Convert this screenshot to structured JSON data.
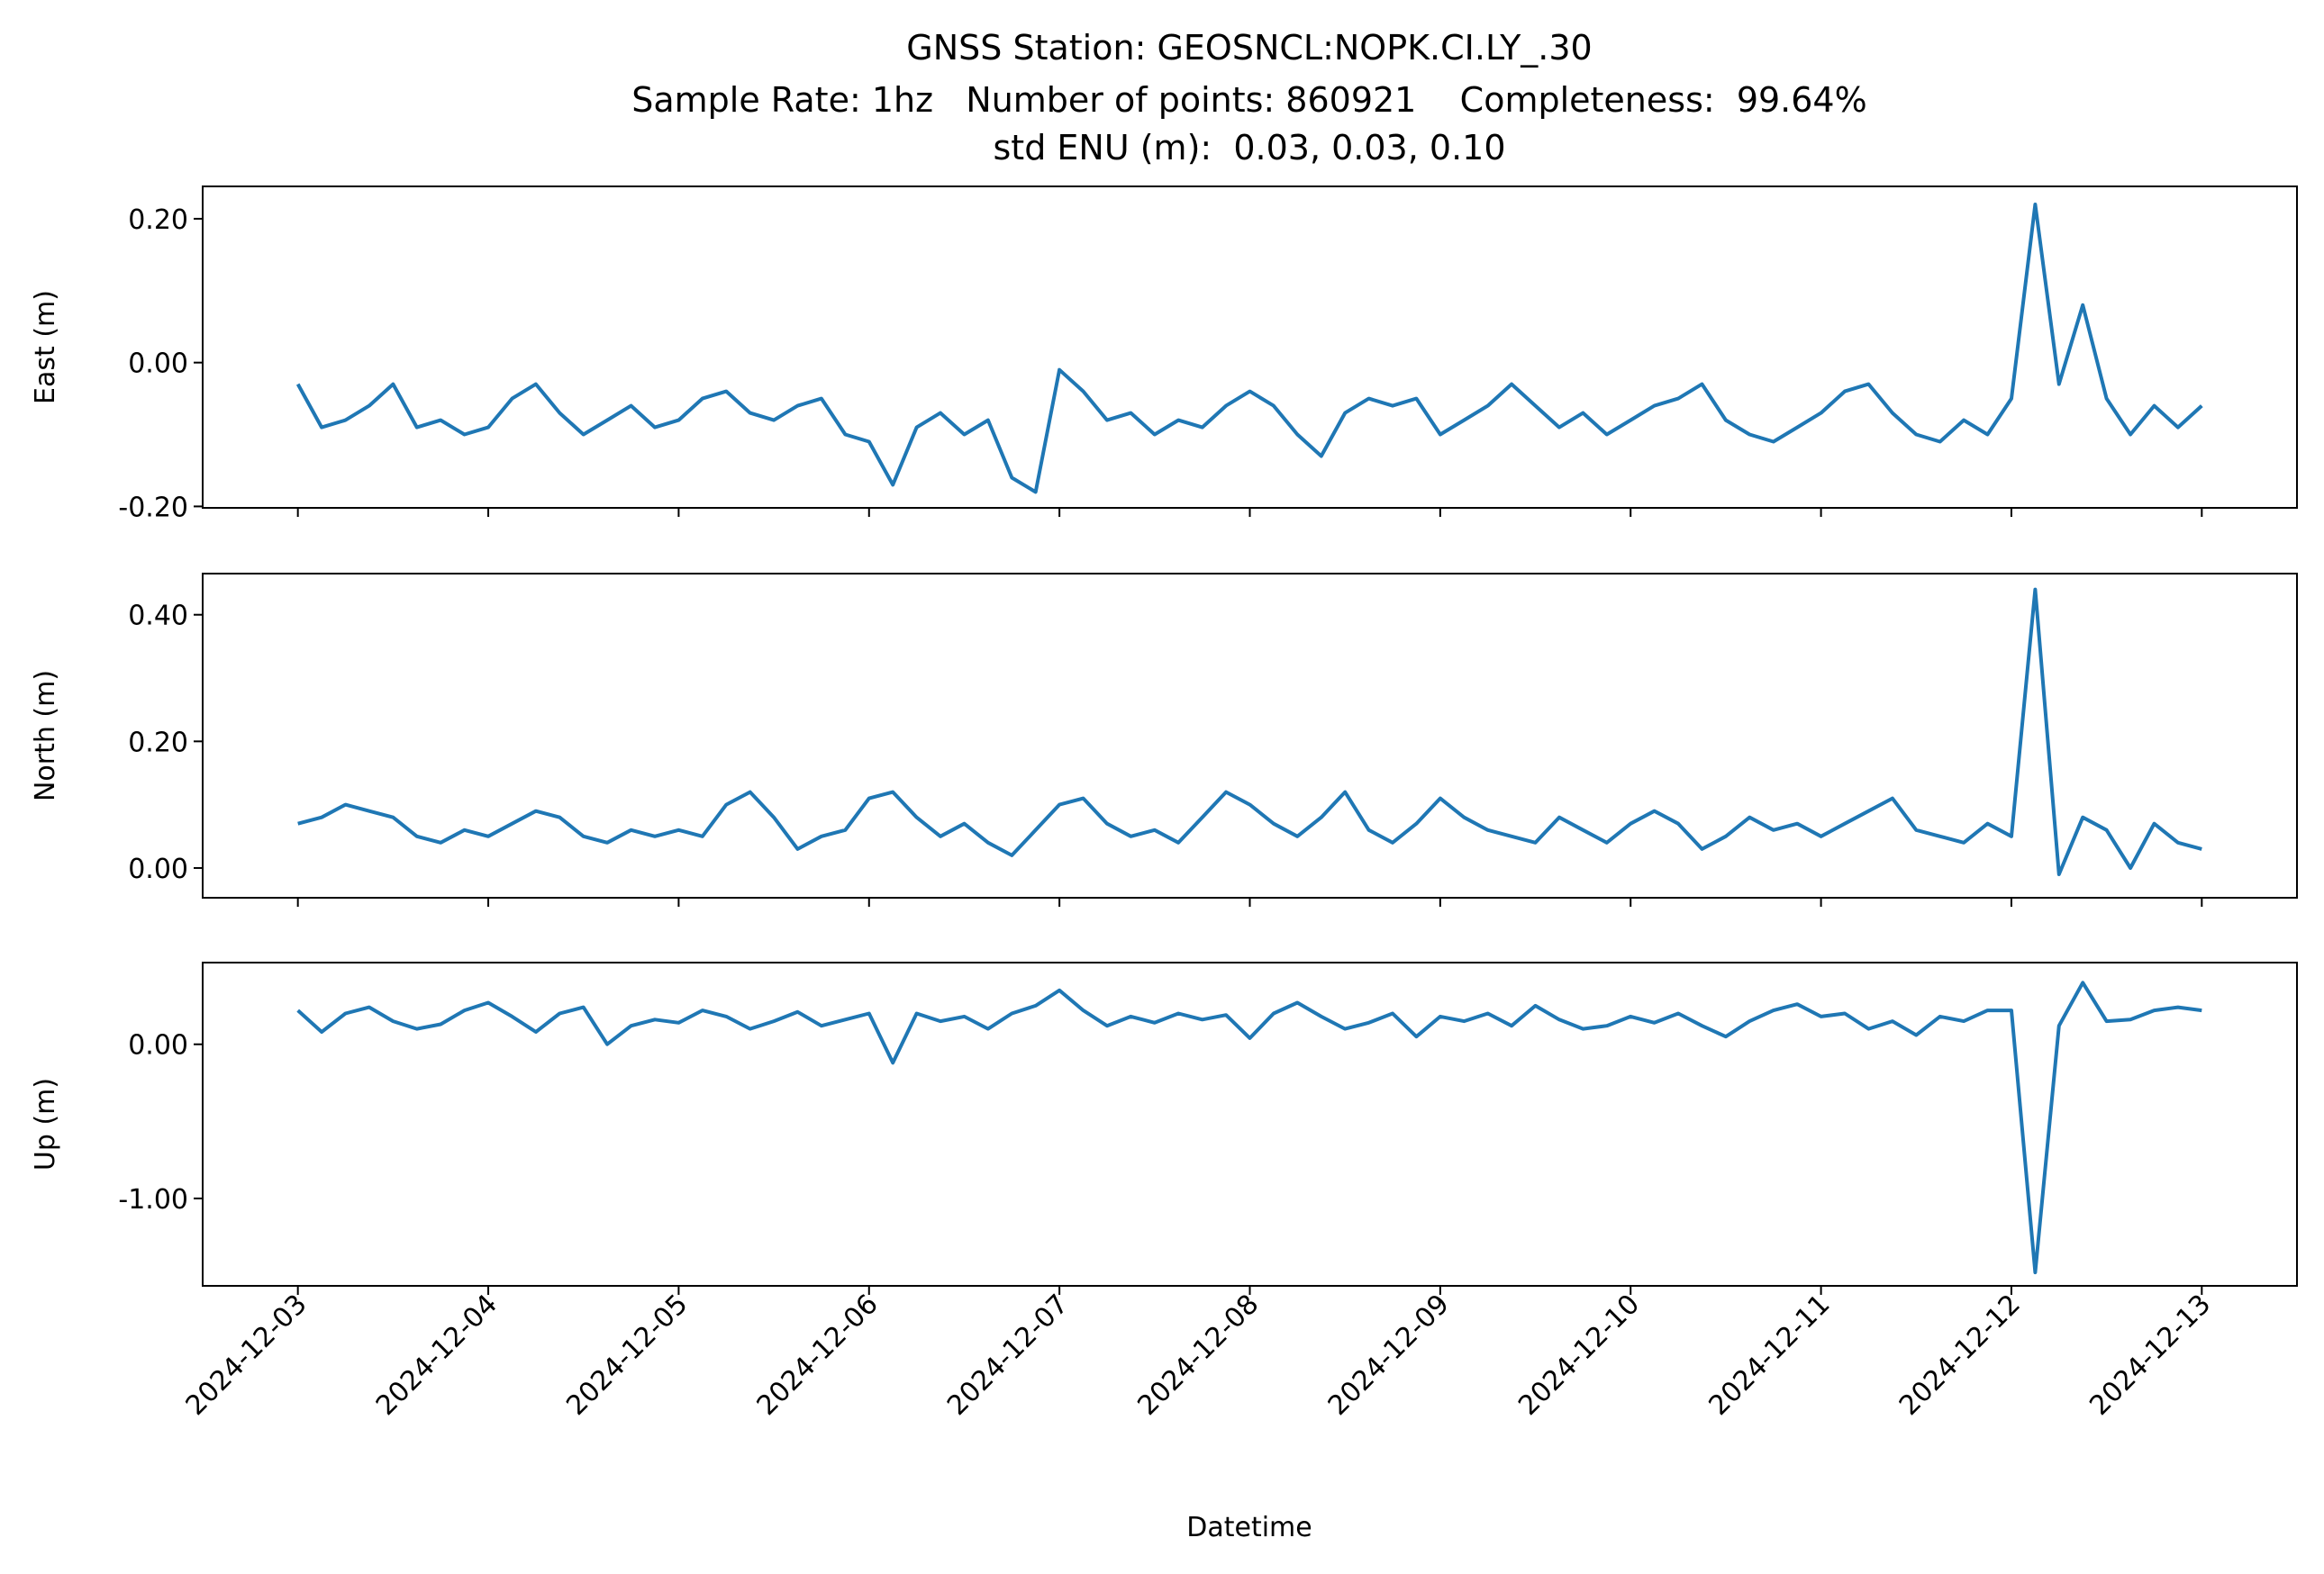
{
  "chart_data": {
    "type": "line",
    "title": [
      "GNSS Station: GEOSNCL:NOPK.CI.LY_.30",
      "Sample Rate: 1hz   Number of points: 860921    Completeness:  99.64%",
      "std ENU (m):  0.03, 0.03, 0.10"
    ],
    "xlabel": "Datetime",
    "xlim": [
      "2024-12-02T12:00",
      "2024-12-13T12:00"
    ],
    "xticks": [
      "2024-12-03",
      "2024-12-04",
      "2024-12-05",
      "2024-12-06",
      "2024-12-07",
      "2024-12-08",
      "2024-12-09",
      "2024-12-10",
      "2024-12-11",
      "2024-12-12",
      "2024-12-13"
    ],
    "x": [
      "2024-12-03T00:00",
      "2024-12-03T03:00",
      "2024-12-03T06:00",
      "2024-12-03T09:00",
      "2024-12-03T12:00",
      "2024-12-03T15:00",
      "2024-12-03T18:00",
      "2024-12-03T21:00",
      "2024-12-04T00:00",
      "2024-12-04T03:00",
      "2024-12-04T06:00",
      "2024-12-04T09:00",
      "2024-12-04T12:00",
      "2024-12-04T15:00",
      "2024-12-04T18:00",
      "2024-12-04T21:00",
      "2024-12-05T00:00",
      "2024-12-05T03:00",
      "2024-12-05T06:00",
      "2024-12-05T09:00",
      "2024-12-05T12:00",
      "2024-12-05T15:00",
      "2024-12-05T18:00",
      "2024-12-05T21:00",
      "2024-12-06T00:00",
      "2024-12-06T03:00",
      "2024-12-06T06:00",
      "2024-12-06T09:00",
      "2024-12-06T12:00",
      "2024-12-06T15:00",
      "2024-12-06T18:00",
      "2024-12-06T21:00",
      "2024-12-07T00:00",
      "2024-12-07T03:00",
      "2024-12-07T06:00",
      "2024-12-07T09:00",
      "2024-12-07T12:00",
      "2024-12-07T15:00",
      "2024-12-07T18:00",
      "2024-12-07T21:00",
      "2024-12-08T00:00",
      "2024-12-08T03:00",
      "2024-12-08T06:00",
      "2024-12-08T09:00",
      "2024-12-08T12:00",
      "2024-12-08T15:00",
      "2024-12-08T18:00",
      "2024-12-08T21:00",
      "2024-12-09T00:00",
      "2024-12-09T03:00",
      "2024-12-09T06:00",
      "2024-12-09T09:00",
      "2024-12-09T12:00",
      "2024-12-09T15:00",
      "2024-12-09T18:00",
      "2024-12-09T21:00",
      "2024-12-10T00:00",
      "2024-12-10T03:00",
      "2024-12-10T06:00",
      "2024-12-10T09:00",
      "2024-12-10T12:00",
      "2024-12-10T15:00",
      "2024-12-10T18:00",
      "2024-12-10T21:00",
      "2024-12-11T00:00",
      "2024-12-11T03:00",
      "2024-12-11T06:00",
      "2024-12-11T09:00",
      "2024-12-11T12:00",
      "2024-12-11T15:00",
      "2024-12-11T18:00",
      "2024-12-11T21:00",
      "2024-12-12T00:00",
      "2024-12-12T03:00",
      "2024-12-12T06:00",
      "2024-12-12T09:00",
      "2024-12-12T12:00",
      "2024-12-12T15:00",
      "2024-12-12T18:00",
      "2024-12-12T21:00",
      "2024-12-13T00:00"
    ],
    "panels": [
      {
        "ylabel": "East (m)",
        "ylim": [
          -0.202,
          0.245
        ],
        "yticks": [
          {
            "value": -0.2,
            "label": "-0.20"
          },
          {
            "value": 0,
            "label": "0.00"
          },
          {
            "value": 0.2,
            "label": "0.20"
          }
        ],
        "series": [
          {
            "color": "#1f77b4",
            "values": [
              -0.03,
              -0.09,
              -0.08,
              -0.06,
              -0.03,
              -0.09,
              -0.08,
              -0.1,
              -0.09,
              -0.05,
              -0.03,
              -0.07,
              -0.1,
              -0.08,
              -0.06,
              -0.09,
              -0.08,
              -0.05,
              -0.04,
              -0.07,
              -0.08,
              -0.06,
              -0.05,
              -0.1,
              -0.11,
              -0.17,
              -0.09,
              -0.07,
              -0.1,
              -0.08,
              -0.16,
              -0.18,
              -0.01,
              -0.04,
              -0.08,
              -0.07,
              -0.1,
              -0.08,
              -0.09,
              -0.06,
              -0.04,
              -0.06,
              -0.1,
              -0.13,
              -0.07,
              -0.05,
              -0.06,
              -0.05,
              -0.1,
              -0.08,
              -0.06,
              -0.03,
              -0.06,
              -0.09,
              -0.07,
              -0.1,
              -0.08,
              -0.06,
              -0.05,
              -0.03,
              -0.08,
              -0.1,
              -0.11,
              -0.09,
              -0.07,
              -0.04,
              -0.03,
              -0.07,
              -0.1,
              -0.11,
              -0.08,
              -0.1,
              -0.05,
              0.22,
              -0.03,
              0.08,
              -0.05,
              -0.1,
              -0.06,
              -0.09,
              -0.06
            ]
          }
        ]
      },
      {
        "ylabel": "North (m)",
        "ylim": [
          -0.047,
          0.465
        ],
        "yticks": [
          {
            "value": 0,
            "label": "0.00"
          },
          {
            "value": 0.2,
            "label": "0.20"
          },
          {
            "value": 0.4,
            "label": "0.40"
          }
        ],
        "series": [
          {
            "color": "#1f77b4",
            "values": [
              0.07,
              0.08,
              0.1,
              0.09,
              0.08,
              0.05,
              0.04,
              0.06,
              0.05,
              0.07,
              0.09,
              0.08,
              0.05,
              0.04,
              0.06,
              0.05,
              0.06,
              0.05,
              0.1,
              0.12,
              0.08,
              0.03,
              0.05,
              0.06,
              0.11,
              0.12,
              0.08,
              0.05,
              0.07,
              0.04,
              0.02,
              0.06,
              0.1,
              0.11,
              0.07,
              0.05,
              0.06,
              0.04,
              0.08,
              0.12,
              0.1,
              0.07,
              0.05,
              0.08,
              0.12,
              0.06,
              0.04,
              0.07,
              0.11,
              0.08,
              0.06,
              0.05,
              0.04,
              0.08,
              0.06,
              0.04,
              0.07,
              0.09,
              0.07,
              0.03,
              0.05,
              0.08,
              0.06,
              0.07,
              0.05,
              0.07,
              0.09,
              0.11,
              0.06,
              0.05,
              0.04,
              0.07,
              0.05,
              0.44,
              -0.01,
              0.08,
              0.06,
              0.0,
              0.07,
              0.04,
              0.03
            ]
          }
        ]
      },
      {
        "ylabel": "Up (m)",
        "ylim": [
          -1.567,
          0.53
        ],
        "yticks": [
          {
            "value": -1,
            "label": "-1.00"
          },
          {
            "value": 0,
            "label": "0.00"
          }
        ],
        "series": [
          {
            "color": "#1f77b4",
            "values": [
              0.22,
              0.08,
              0.2,
              0.24,
              0.15,
              0.1,
              0.13,
              0.22,
              0.27,
              0.18,
              0.08,
              0.2,
              0.24,
              0.0,
              0.12,
              0.16,
              0.14,
              0.22,
              0.18,
              0.1,
              0.15,
              0.21,
              0.12,
              0.16,
              0.2,
              -0.12,
              0.2,
              0.15,
              0.18,
              0.1,
              0.2,
              0.25,
              0.35,
              0.22,
              0.12,
              0.18,
              0.14,
              0.2,
              0.16,
              0.19,
              0.04,
              0.2,
              0.27,
              0.18,
              0.1,
              0.14,
              0.2,
              0.05,
              0.18,
              0.15,
              0.2,
              0.12,
              0.25,
              0.16,
              0.1,
              0.12,
              0.18,
              0.14,
              0.2,
              0.12,
              0.05,
              0.15,
              0.22,
              0.26,
              0.18,
              0.2,
              0.1,
              0.15,
              0.06,
              0.18,
              0.15,
              0.22,
              0.22,
              -1.48,
              0.12,
              0.4,
              0.15,
              0.16,
              0.22,
              0.24,
              0.22
            ]
          }
        ]
      }
    ]
  }
}
